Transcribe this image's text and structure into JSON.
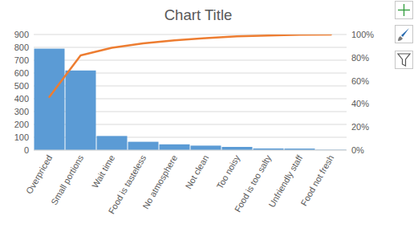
{
  "chart_data": {
    "type": "pareto",
    "title": "Chart Title",
    "categories": [
      "Overpriced",
      "Small portions",
      "Wait time",
      "Food is tasteless",
      "No atmosphere",
      "Not clean",
      "Too noisy",
      "Food is too salty",
      "Unfriendly staff",
      "Food not fresh"
    ],
    "series": [
      {
        "type": "bar",
        "color": "#5b9bd5",
        "values": [
          790,
          620,
          110,
          65,
          45,
          35,
          25,
          13,
          12,
          3
        ]
      },
      {
        "type": "line",
        "color": "#ed7d31",
        "axis": "y2",
        "values": [
          46,
          82,
          88.5,
          92.3,
          94.9,
          96.9,
          98.4,
          99.1,
          99.8,
          100
        ]
      }
    ],
    "ylim": [
      0,
      900
    ],
    "yticks": [
      0,
      100,
      200,
      300,
      400,
      500,
      600,
      700,
      800,
      900
    ],
    "y2lim": [
      0,
      100
    ],
    "y2ticks": [
      {
        "value": 0,
        "label": "0%"
      },
      {
        "value": 20,
        "label": "20%"
      },
      {
        "value": 40,
        "label": "40%"
      },
      {
        "value": 60,
        "label": "60%"
      },
      {
        "value": 80,
        "label": "80%"
      },
      {
        "value": 100,
        "label": "100%"
      }
    ],
    "grid": true
  }
}
